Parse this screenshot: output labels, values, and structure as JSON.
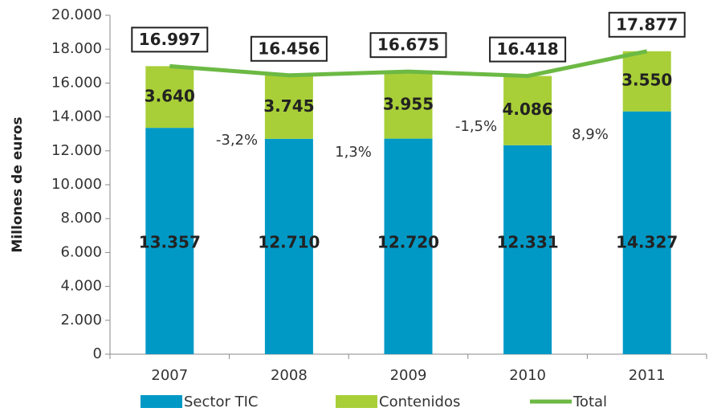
{
  "chart_data": {
    "type": "stacked-bar-line",
    "y_label": "Millones de euros",
    "categories": [
      "2007",
      "2008",
      "2009",
      "2010",
      "2011"
    ],
    "series": [
      {
        "name": "Sector TIC",
        "type": "bar",
        "color": "#0099c6",
        "values": [
          13357,
          12710,
          12720,
          12331,
          14327
        ],
        "value_labels": [
          "13.357",
          "12.710",
          "12.720",
          "12.331",
          "14.327"
        ]
      },
      {
        "name": "Contenidos",
        "type": "bar",
        "color": "#a8cf38",
        "values": [
          3640,
          3745,
          3955,
          4086,
          3550
        ],
        "value_labels": [
          "3.640",
          "3.745",
          "3.955",
          "4.086",
          "3.550"
        ]
      },
      {
        "name": "Total",
        "type": "line",
        "color": "#6cb944",
        "values": [
          16997,
          16456,
          16675,
          16418,
          17877
        ],
        "value_labels": [
          "16.997",
          "16.456",
          "16.675",
          "16.418",
          "17.877"
        ]
      }
    ],
    "annotations": [
      "-3,2%",
      "1,3%",
      "-1,5%",
      "8,9%"
    ],
    "ylim": [
      0,
      20000
    ],
    "yticks": [
      0,
      {
        "value": 2000,
        "label": "2.000"
      },
      {
        "value": 4000,
        "label": "4.000"
      },
      {
        "value": 6000,
        "label": "6.000"
      },
      {
        "value": 8000,
        "label": "8.000"
      },
      {
        "value": 10000,
        "label": "10.000"
      },
      {
        "value": 12000,
        "label": "12.000"
      },
      {
        "value": 14000,
        "label": "14.000"
      },
      {
        "value": 16000,
        "label": "16.000"
      },
      {
        "value": 18000,
        "label": "18.000"
      },
      {
        "value": 20000,
        "label": "20.000"
      }
    ],
    "grid": false,
    "legend": "bottom"
  }
}
